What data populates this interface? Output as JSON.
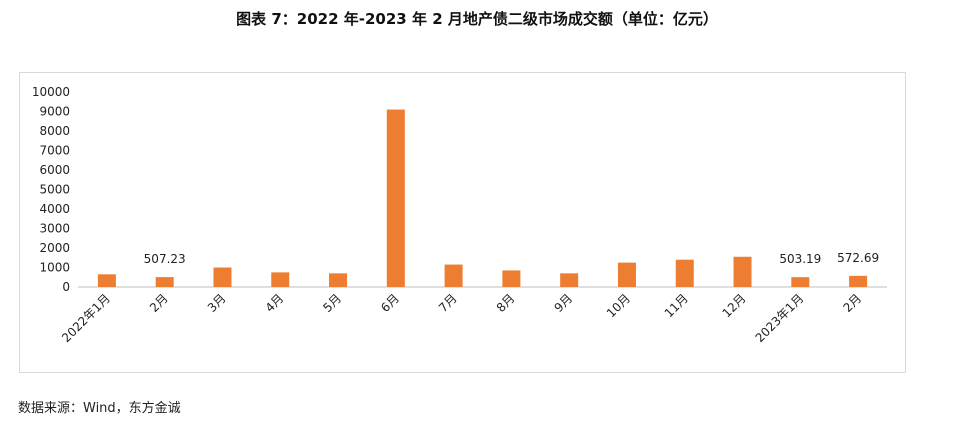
{
  "title": "图表 7：2022 年-2023 年 2 月地产债二级市场成交额（单位：亿元）",
  "source": "数据来源：Wind，东方金诚",
  "colors": {
    "bar": "#ED7D31",
    "axis": "#bfbfbf",
    "text": "#222222"
  },
  "chart_data": {
    "type": "bar",
    "title": "图表 7：2022 年-2023 年 2 月地产债二级市场成交额（单位：亿元）",
    "xlabel": "",
    "ylabel": "",
    "categories": [
      "2022年1月",
      "2月",
      "3月",
      "4月",
      "5月",
      "6月",
      "7月",
      "8月",
      "9月",
      "10月",
      "11月",
      "12月",
      "2023年1月",
      "2月"
    ],
    "values": [
      650,
      507.23,
      1000,
      750,
      700,
      9100,
      1150,
      850,
      700,
      1250,
      1400,
      1550,
      503.19,
      572.69
    ],
    "data_labels": [
      "",
      "507.23",
      "",
      "",
      "",
      "",
      "",
      "",
      "",
      "",
      "",
      "",
      "503.19",
      "572.69"
    ],
    "ylim": [
      0,
      10000
    ],
    "yticks": [
      "0",
      "1000",
      "2000",
      "3000",
      "4000",
      "5000",
      "6000",
      "7000",
      "8000",
      "9000",
      "10000"
    ],
    "grid": false,
    "legend": "none"
  }
}
